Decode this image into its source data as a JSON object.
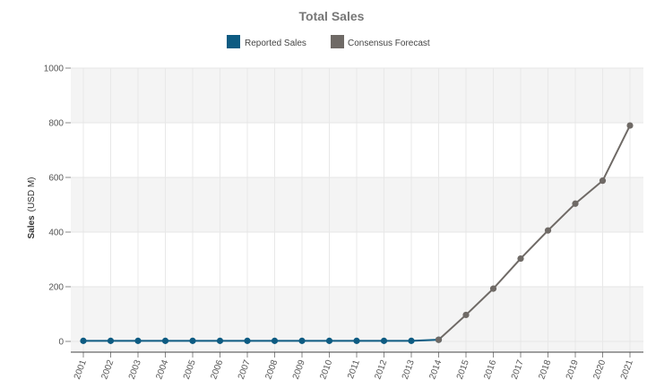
{
  "chart_data": {
    "type": "line",
    "title": "Total Sales",
    "ylabel": "Sales",
    "ylabel_unit": "(USD M)",
    "xlabel": "",
    "ylim": [
      0,
      1000
    ],
    "yticks": [
      0,
      200,
      400,
      600,
      800,
      1000
    ],
    "categories": [
      "2001",
      "2002",
      "2003",
      "2004",
      "2005",
      "2006",
      "2007",
      "2008",
      "2009",
      "2010",
      "2011",
      "2012",
      "2013",
      "2014",
      "2015",
      "2016",
      "2017",
      "2018",
      "2019",
      "2020",
      "2021"
    ],
    "legend_position": "top-center",
    "grid": true,
    "series": [
      {
        "name": "Reported Sales",
        "color": "#0d5b82",
        "values": [
          2,
          2,
          2,
          2,
          2,
          2,
          2,
          2,
          2,
          2,
          2,
          2,
          2,
          6,
          null,
          null,
          null,
          null,
          null,
          null,
          null
        ]
      },
      {
        "name": "Consensus Forecast",
        "color": "#6f6a66",
        "values": [
          null,
          null,
          null,
          null,
          null,
          null,
          null,
          null,
          null,
          null,
          null,
          null,
          null,
          6,
          97,
          193,
          303,
          406,
          504,
          588,
          790
        ]
      }
    ]
  }
}
